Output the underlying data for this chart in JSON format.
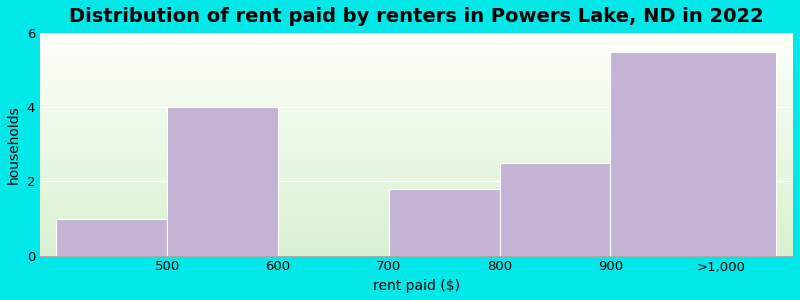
{
  "title": "Distribution of rent paid by renters in Powers Lake, ND in 2022",
  "xlabel": "rent paid ($)",
  "ylabel": "households",
  "tick_labels": [
    "500",
    "600",
    "700",
    "800",
    "900",
    ">1,000"
  ],
  "tick_positions": [
    1,
    2,
    3,
    4,
    5,
    6
  ],
  "bar_lefts": [
    0,
    1,
    2,
    3,
    4,
    5
  ],
  "bar_rights": [
    1,
    2,
    3,
    4,
    5,
    6.5
  ],
  "bar_heights": [
    1.0,
    4.0,
    0.0,
    1.8,
    2.5,
    5.5
  ],
  "bar_color": "#c4b3d4",
  "ylim": [
    0,
    6
  ],
  "xlim": [
    -0.15,
    6.65
  ],
  "yticks": [
    0,
    2,
    4,
    6
  ],
  "background_color": "#00e8e8",
  "title_fontsize": 14,
  "axis_label_fontsize": 10,
  "tick_fontsize": 9.5
}
